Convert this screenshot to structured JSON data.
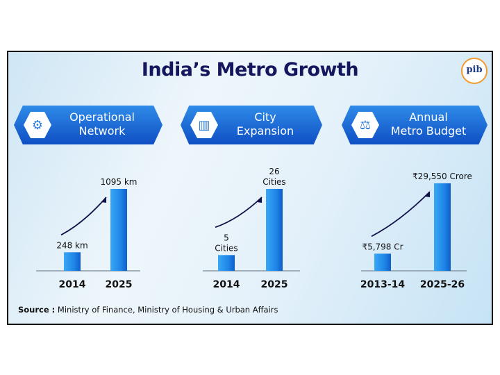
{
  "title": "India’s Metro Growth",
  "logo_text": "pib",
  "banners": [
    {
      "label_line1": "Operational",
      "label_line2": "Network",
      "icon": "network-icon"
    },
    {
      "label_line1": "City",
      "label_line2": "Expansion",
      "icon": "city-buildings-icon"
    },
    {
      "label_line1": "Annual",
      "label_line2": "Metro Budget",
      "icon": "budget-icon"
    }
  ],
  "colors": {
    "bar": "#1f86e8",
    "title": "#16165e",
    "banner": "#1a62d4",
    "arrow": "#12124a"
  },
  "chart_data": [
    {
      "type": "bar",
      "categories": [
        "2014",
        "2025"
      ],
      "values": [
        248,
        1095
      ],
      "data_labels": [
        [
          "248 km"
        ],
        [
          "1095 km"
        ]
      ],
      "unit": "km",
      "trend_arrow": true
    },
    {
      "type": "bar",
      "categories": [
        "2014",
        "2025"
      ],
      "values": [
        5,
        26
      ],
      "data_labels": [
        [
          "5",
          "Cities"
        ],
        [
          "26",
          "Cities"
        ]
      ],
      "unit": "Cities",
      "trend_arrow": true
    },
    {
      "type": "bar",
      "categories": [
        "2013-14",
        "2025-26"
      ],
      "values": [
        5798,
        29550
      ],
      "data_labels": [
        [
          "₹5,798 Cr"
        ],
        [
          "₹29,550 Crore"
        ]
      ],
      "unit": "₹ Crore",
      "trend_arrow": true
    }
  ],
  "source": {
    "label": "Source :",
    "text": " Ministry of Finance, Ministry of Housing & Urban Affairs"
  }
}
